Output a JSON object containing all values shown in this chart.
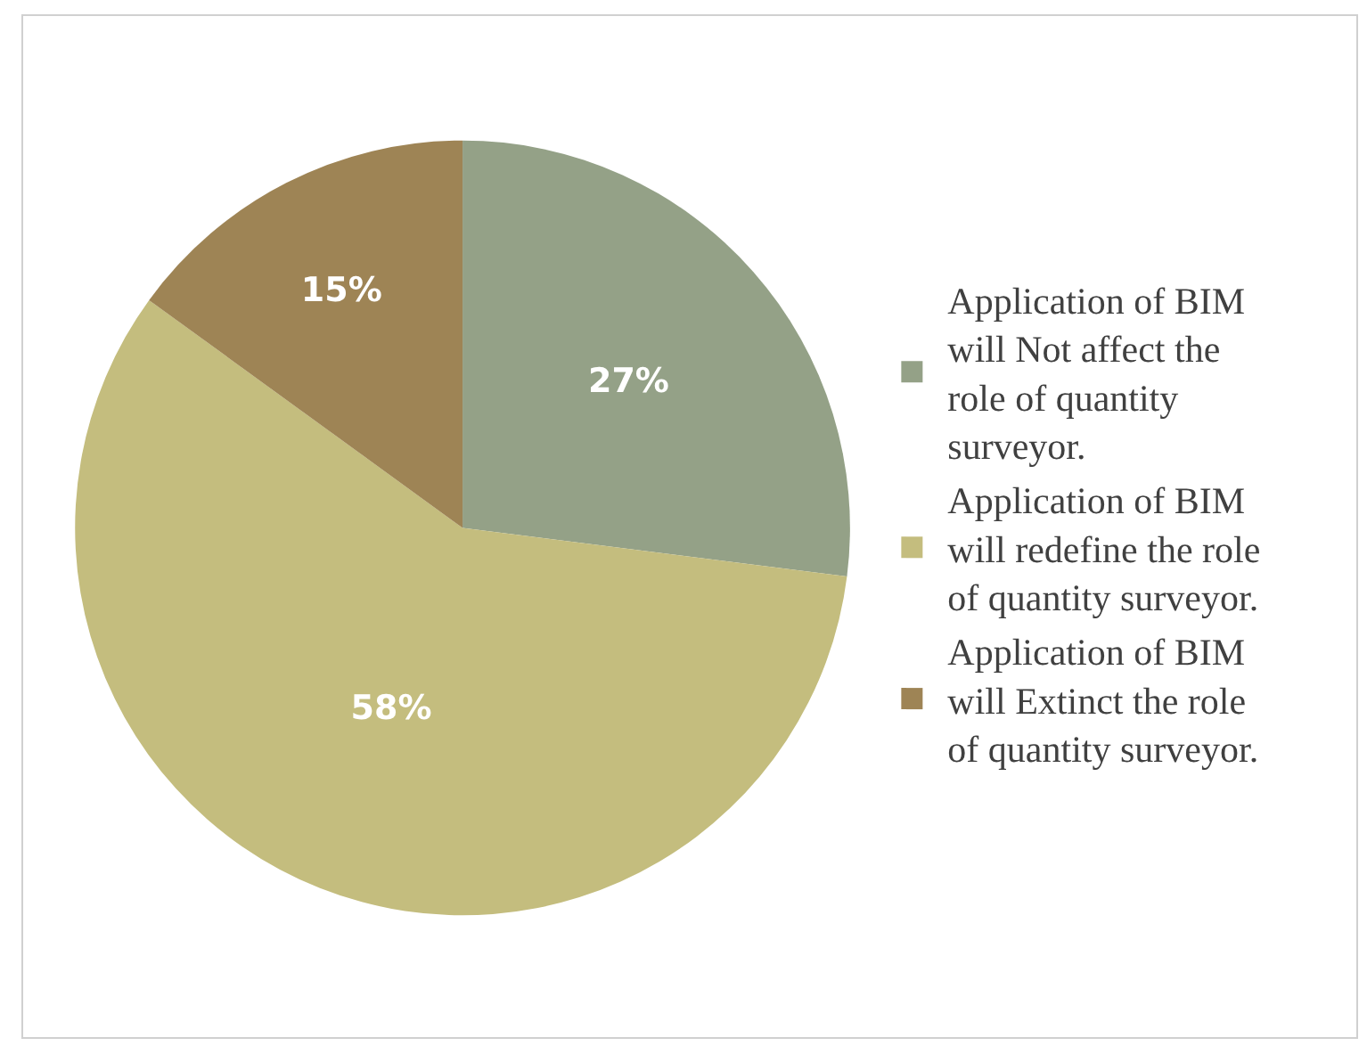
{
  "chart_data": {
    "type": "pie",
    "categories": [
      "Application of BIM will Not affect the role of quantity surveyor.",
      "Application of BIM will redefine the role of quantity surveyor.",
      "Application of BIM will Extinct the role of quantity surveyor."
    ],
    "values": [
      27,
      58,
      15
    ],
    "value_labels": [
      "27%",
      "58%",
      "15%"
    ],
    "colors": [
      "#94a187",
      "#c4bd7e",
      "#9e8455"
    ],
    "legend": "right"
  }
}
